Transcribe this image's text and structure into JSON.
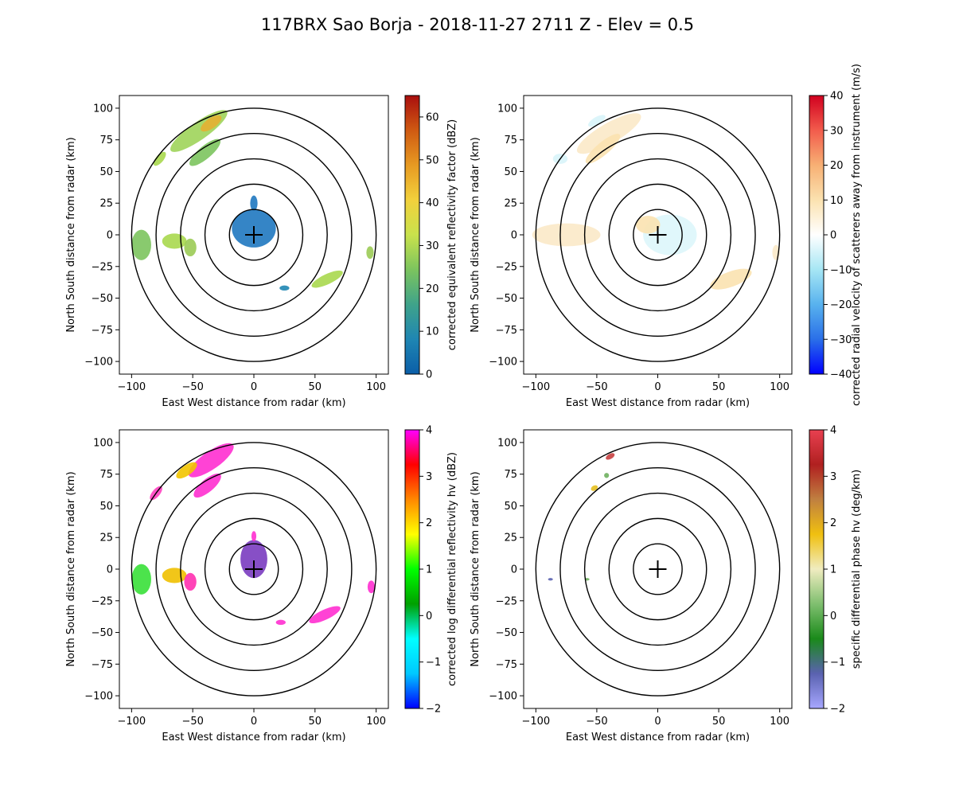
{
  "title": "117BRX Sao Borja - 2018-11-27 2711 Z -  Elev = 0.5",
  "chart_data": [
    {
      "type": "heatmap",
      "field": "reflectivity",
      "xlabel": "East West distance from radar (km)",
      "ylabel": "North South distance from radar (km)",
      "xlim": [
        -110,
        110
      ],
      "ylim": [
        -110,
        110
      ],
      "xticks": [
        -100,
        -50,
        0,
        50,
        100
      ],
      "yticks": [
        -100,
        -75,
        -50,
        -25,
        0,
        25,
        50,
        75,
        100
      ],
      "range_rings_km": [
        20,
        40,
        60,
        80,
        100
      ],
      "colorbar": {
        "label": "corrected equivalent reflectivity factor (dBZ)",
        "range": [
          0,
          65
        ],
        "ticks": [
          0,
          10,
          20,
          30,
          40,
          50,
          60
        ],
        "colors": [
          "#0b5ea8",
          "#1f86b3",
          "#3fa38a",
          "#7cc45e",
          "#c9e24c",
          "#f2d13c",
          "#e79a22",
          "#cf5a12",
          "#a90e0e"
        ]
      },
      "echoes": [
        {
          "x": -45,
          "y": 82,
          "rx": 28,
          "ry": 7,
          "rot": -35,
          "color": "#9fd45a"
        },
        {
          "x": -35,
          "y": 88,
          "rx": 10,
          "ry": 4,
          "rot": -35,
          "color": "#e4b032"
        },
        {
          "x": -40,
          "y": 65,
          "rx": 16,
          "ry": 5,
          "rot": -40,
          "color": "#7cc45e"
        },
        {
          "x": -77,
          "y": 60,
          "rx": 7,
          "ry": 3,
          "rot": -50,
          "color": "#a8d84e"
        },
        {
          "x": -92,
          "y": -8,
          "rx": 8,
          "ry": 12,
          "rot": 0,
          "color": "#7cc45e"
        },
        {
          "x": -65,
          "y": -5,
          "rx": 10,
          "ry": 6,
          "rot": 0,
          "color": "#a8d84e"
        },
        {
          "x": -52,
          "y": -10,
          "rx": 5,
          "ry": 7,
          "rot": 0,
          "color": "#9bcb55"
        },
        {
          "x": 60,
          "y": -35,
          "rx": 14,
          "ry": 4,
          "rot": -25,
          "color": "#a8d84e"
        },
        {
          "x": 95,
          "y": -14,
          "rx": 3,
          "ry": 5,
          "rot": 0,
          "color": "#9bcb55"
        },
        {
          "x": 0,
          "y": 5,
          "rx": 18,
          "ry": 15,
          "rot": 0,
          "color": "#1f78c0"
        },
        {
          "x": 0,
          "y": 25,
          "rx": 3,
          "ry": 6,
          "rot": 0,
          "color": "#1f78c0"
        },
        {
          "x": 25,
          "y": -42,
          "rx": 4,
          "ry": 2,
          "rot": 0,
          "color": "#1f86b3"
        }
      ]
    },
    {
      "type": "heatmap",
      "field": "velocity",
      "xlabel": "East West distance from radar (km)",
      "ylabel": "North South distance from radar (km)",
      "xlim": [
        -110,
        110
      ],
      "ylim": [
        -110,
        110
      ],
      "xticks": [
        -100,
        -50,
        0,
        50,
        100
      ],
      "yticks": [
        -100,
        -75,
        -50,
        -25,
        0,
        25,
        50,
        75,
        100
      ],
      "range_rings_km": [
        20,
        40,
        60,
        80,
        100
      ],
      "colorbar": {
        "label": "corrected radial velocity of scatterers away from instrument (m/s)",
        "range": [
          -40,
          40
        ],
        "ticks": [
          -40,
          -30,
          -20,
          -10,
          0,
          10,
          20,
          30,
          40
        ],
        "colors": [
          "#0000ff",
          "#2a6fe8",
          "#58b2ee",
          "#a6e6f4",
          "#ffffff",
          "#fbe2b0",
          "#f7b074",
          "#f25c4c",
          "#d1001f"
        ]
      },
      "echoes": [
        {
          "x": -40,
          "y": 80,
          "rx": 30,
          "ry": 8,
          "rot": -30,
          "color": "#fbe9c8"
        },
        {
          "x": -45,
          "y": 68,
          "rx": 18,
          "ry": 5,
          "rot": -40,
          "color": "#fbe2b0"
        },
        {
          "x": -50,
          "y": 90,
          "rx": 8,
          "ry": 3,
          "rot": -30,
          "color": "#d8f4fa"
        },
        {
          "x": -80,
          "y": 60,
          "rx": 6,
          "ry": 4,
          "rot": 0,
          "color": "#d8f4fa"
        },
        {
          "x": -75,
          "y": 0,
          "rx": 28,
          "ry": 9,
          "rot": 0,
          "color": "#fbe9c8"
        },
        {
          "x": 60,
          "y": -35,
          "rx": 18,
          "ry": 6,
          "rot": -20,
          "color": "#fbe2b0"
        },
        {
          "x": 10,
          "y": 0,
          "rx": 22,
          "ry": 16,
          "rot": 0,
          "color": "#ddf6fb"
        },
        {
          "x": -8,
          "y": 8,
          "rx": 10,
          "ry": 7,
          "rot": 0,
          "color": "#fbe2b0"
        },
        {
          "x": 97,
          "y": -14,
          "rx": 3,
          "ry": 6,
          "rot": 0,
          "color": "#fbe9c8"
        }
      ]
    },
    {
      "type": "heatmap",
      "field": "differential_reflectivity",
      "xlabel": "East West distance from radar (km)",
      "ylabel": "North South distance from radar (km)",
      "xlim": [
        -110,
        110
      ],
      "ylim": [
        -110,
        110
      ],
      "xticks": [
        -100,
        -50,
        0,
        50,
        100
      ],
      "yticks": [
        -100,
        -75,
        -50,
        -25,
        0,
        25,
        50,
        75,
        100
      ],
      "range_rings_km": [
        20,
        40,
        60,
        80,
        100
      ],
      "colorbar": {
        "label": "corrected log differential reflectivity hv (dBZ)",
        "range": [
          -2,
          4
        ],
        "ticks": [
          -2,
          -1,
          0,
          1,
          2,
          3,
          4
        ],
        "colors": [
          "#0000ff",
          "#00c8ff",
          "#00ffff",
          "#00a000",
          "#00ff00",
          "#ffff00",
          "#ff8800",
          "#ff0000",
          "#ff00ff"
        ]
      },
      "echoes": [
        {
          "x": -35,
          "y": 86,
          "rx": 22,
          "ry": 7,
          "rot": -35,
          "color": "#ff2fd0"
        },
        {
          "x": -55,
          "y": 78,
          "rx": 10,
          "ry": 4,
          "rot": -35,
          "color": "#f2c400"
        },
        {
          "x": -38,
          "y": 66,
          "rx": 14,
          "ry": 5,
          "rot": -40,
          "color": "#ff2fd0"
        },
        {
          "x": -80,
          "y": 60,
          "rx": 7,
          "ry": 3,
          "rot": -50,
          "color": "#ff40c0"
        },
        {
          "x": -92,
          "y": -8,
          "rx": 8,
          "ry": 12,
          "rot": 0,
          "color": "#38e038"
        },
        {
          "x": -65,
          "y": -5,
          "rx": 10,
          "ry": 6,
          "rot": 0,
          "color": "#f0c000"
        },
        {
          "x": -52,
          "y": -10,
          "rx": 5,
          "ry": 7,
          "rot": 0,
          "color": "#ff30b0"
        },
        {
          "x": 58,
          "y": -36,
          "rx": 14,
          "ry": 4,
          "rot": -25,
          "color": "#ff2fd0"
        },
        {
          "x": 96,
          "y": -14,
          "rx": 3,
          "ry": 5,
          "rot": 0,
          "color": "#ff2fd0"
        },
        {
          "x": 0,
          "y": 8,
          "rx": 11,
          "ry": 15,
          "rot": 0,
          "color": "#7a3cc0"
        },
        {
          "x": 0,
          "y": 26,
          "rx": 2,
          "ry": 4,
          "rot": 0,
          "color": "#ff2fd0"
        },
        {
          "x": 22,
          "y": -42,
          "rx": 4,
          "ry": 2,
          "rot": 0,
          "color": "#ff2fd0"
        }
      ]
    },
    {
      "type": "heatmap",
      "field": "specific_differential_phase",
      "xlabel": "East West distance from radar (km)",
      "ylabel": "North South distance from radar (km)",
      "xlim": [
        -110,
        110
      ],
      "ylim": [
        -110,
        110
      ],
      "xticks": [
        -100,
        -50,
        0,
        50,
        100
      ],
      "yticks": [
        -100,
        -75,
        -50,
        -25,
        0,
        25,
        50,
        75,
        100
      ],
      "range_rings_km": [
        20,
        40,
        60,
        80,
        100
      ],
      "colorbar": {
        "label": "specific differential phase hv (deg/km)",
        "range": [
          -2,
          4
        ],
        "ticks": [
          -2,
          -1,
          0,
          1,
          2,
          3,
          4
        ],
        "colors": [
          "#a7a7ff",
          "#5a62b0",
          "#1a8a1a",
          "#7fbf6f",
          "#f0ecc0",
          "#f0c010",
          "#c08040",
          "#b02020",
          "#e84050"
        ]
      },
      "echoes": [
        {
          "x": -39,
          "y": 89,
          "rx": 4,
          "ry": 2,
          "rot": -30,
          "color": "#c84040"
        },
        {
          "x": -52,
          "y": 64,
          "rx": 3,
          "ry": 2,
          "rot": -30,
          "color": "#e6c020"
        },
        {
          "x": -42,
          "y": 74,
          "rx": 2,
          "ry": 2,
          "rot": 0,
          "color": "#6fb05f"
        },
        {
          "x": -88,
          "y": -8,
          "rx": 2,
          "ry": 1,
          "rot": 0,
          "color": "#5a62b0"
        },
        {
          "x": -58,
          "y": -8,
          "rx": 2,
          "ry": 1,
          "rot": 0,
          "color": "#6fb05f"
        }
      ]
    }
  ]
}
